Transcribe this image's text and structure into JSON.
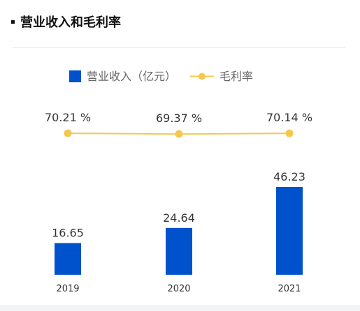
{
  "header": {
    "title": "营业收入和毛利率"
  },
  "chart_data": {
    "type": "bar",
    "categories": [
      "2019",
      "2020",
      "2021"
    ],
    "series": [
      {
        "name": "营业收入（亿元）",
        "type": "bar",
        "values": [
          16.65,
          24.64,
          46.23
        ],
        "labels": [
          "16.65",
          "24.64",
          "46.23"
        ],
        "color": "#0052cc"
      },
      {
        "name": "毛利率",
        "type": "line",
        "values": [
          70.21,
          69.37,
          70.14
        ],
        "labels": [
          "70.21 %",
          "69.37 %",
          "70.14 %"
        ],
        "color": "#f5c84c"
      }
    ],
    "legend_position": "top",
    "grid": false
  }
}
